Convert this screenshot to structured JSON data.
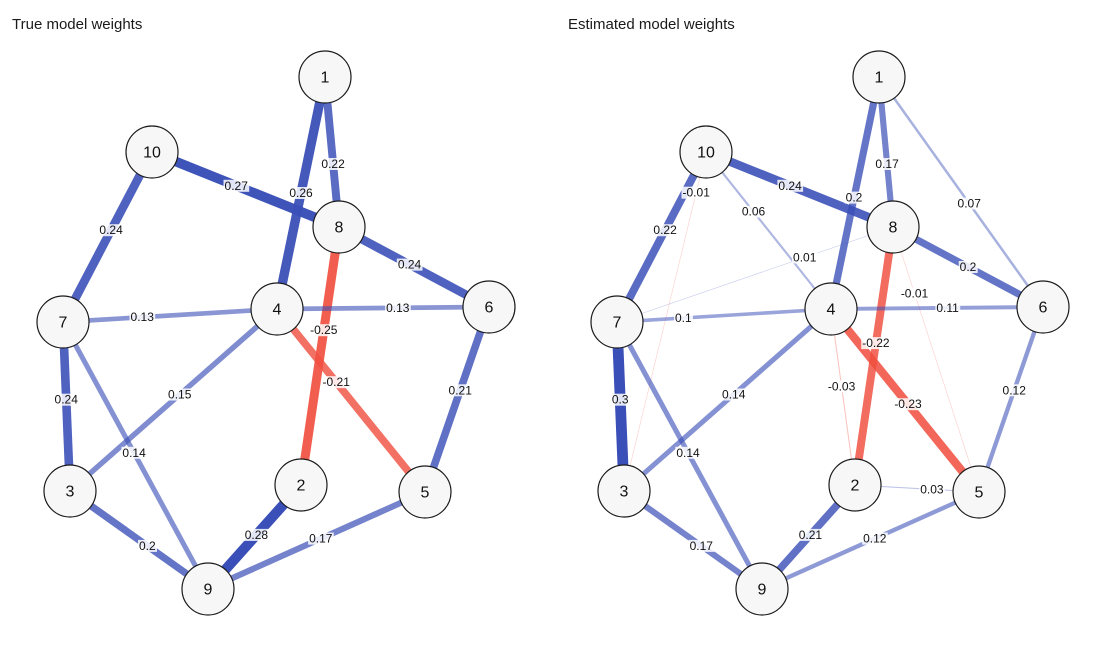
{
  "panels": [
    {
      "id": "true",
      "title": "True model weights",
      "edges": [
        {
          "from": "1",
          "to": "4",
          "weight": 0.26,
          "label": "0.26"
        },
        {
          "from": "1",
          "to": "8",
          "weight": 0.22,
          "label": "0.22"
        },
        {
          "from": "10",
          "to": "8",
          "weight": 0.27,
          "label": "0.27"
        },
        {
          "from": "10",
          "to": "7",
          "weight": 0.24,
          "label": "0.24"
        },
        {
          "from": "8",
          "to": "6",
          "weight": 0.24,
          "label": "0.24"
        },
        {
          "from": "8",
          "to": "2",
          "weight": -0.25,
          "label": "-0.25"
        },
        {
          "from": "7",
          "to": "4",
          "weight": 0.13,
          "label": "0.13"
        },
        {
          "from": "4",
          "to": "6",
          "weight": 0.13,
          "label": "0.13"
        },
        {
          "from": "4",
          "to": "5",
          "weight": -0.21,
          "label": "-0.21"
        },
        {
          "from": "4",
          "to": "3",
          "weight": 0.15,
          "label": "0.15"
        },
        {
          "from": "6",
          "to": "5",
          "weight": 0.21,
          "label": "0.21"
        },
        {
          "from": "7",
          "to": "3",
          "weight": 0.24,
          "label": "0.24"
        },
        {
          "from": "7",
          "to": "9",
          "weight": 0.14,
          "label": "0.14"
        },
        {
          "from": "3",
          "to": "9",
          "weight": 0.2,
          "label": "0.2"
        },
        {
          "from": "2",
          "to": "9",
          "weight": 0.28,
          "label": "0.28"
        },
        {
          "from": "5",
          "to": "9",
          "weight": 0.17,
          "label": "0.17"
        }
      ]
    },
    {
      "id": "estimated",
      "title": "Estimated model weights",
      "edges": [
        {
          "from": "1",
          "to": "4",
          "weight": 0.2,
          "label": "0.2"
        },
        {
          "from": "1",
          "to": "8",
          "weight": 0.17,
          "label": "0.17"
        },
        {
          "from": "1",
          "to": "6",
          "weight": 0.07,
          "label": "0.07"
        },
        {
          "from": "10",
          "to": "8",
          "weight": 0.24,
          "label": "0.24"
        },
        {
          "from": "10",
          "to": "7",
          "weight": 0.22,
          "label": "0.22"
        },
        {
          "from": "10",
          "to": "4",
          "weight": 0.06,
          "label": "0.06"
        },
        {
          "from": "10",
          "to": "3",
          "weight": -0.01,
          "label": "-0.01"
        },
        {
          "from": "7",
          "to": "8",
          "weight": 0.01,
          "label": "0.01"
        },
        {
          "from": "8",
          "to": "6",
          "weight": 0.2,
          "label": "0.2"
        },
        {
          "from": "8",
          "to": "2",
          "weight": -0.22,
          "label": "-0.22"
        },
        {
          "from": "8",
          "to": "5",
          "weight": -0.01,
          "label": "-0.01"
        },
        {
          "from": "7",
          "to": "4",
          "weight": 0.1,
          "label": "0.1"
        },
        {
          "from": "4",
          "to": "6",
          "weight": 0.11,
          "label": "0.11"
        },
        {
          "from": "4",
          "to": "5",
          "weight": -0.23,
          "label": "-0.23"
        },
        {
          "from": "4",
          "to": "2",
          "weight": -0.03,
          "label": "-0.03"
        },
        {
          "from": "4",
          "to": "3",
          "weight": 0.14,
          "label": "0.14"
        },
        {
          "from": "6",
          "to": "5",
          "weight": 0.12,
          "label": "0.12"
        },
        {
          "from": "7",
          "to": "3",
          "weight": 0.3,
          "label": "0.3"
        },
        {
          "from": "7",
          "to": "9",
          "weight": 0.14,
          "label": "0.14"
        },
        {
          "from": "3",
          "to": "9",
          "weight": 0.17,
          "label": "0.17"
        },
        {
          "from": "2",
          "to": "9",
          "weight": 0.21,
          "label": "0.21"
        },
        {
          "from": "2",
          "to": "5",
          "weight": 0.03,
          "label": "0.03"
        },
        {
          "from": "5",
          "to": "9",
          "weight": 0.12,
          "label": "0.12"
        }
      ]
    }
  ],
  "nodes": [
    "1",
    "2",
    "3",
    "4",
    "5",
    "6",
    "7",
    "8",
    "9",
    "10"
  ],
  "colors": {
    "positive": "#3a4fb7",
    "negative": "#f05040",
    "node_fill": "#f7f7f7",
    "node_stroke": "#1a1a1a"
  }
}
